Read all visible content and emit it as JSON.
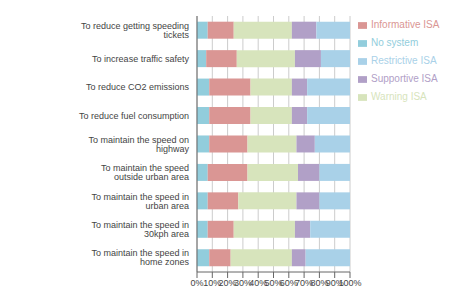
{
  "chart_data": {
    "type": "bar",
    "orientation": "horizontal",
    "stacked": true,
    "categories": [
      "To reduce getting speeding tickets",
      "To increase traffic safety",
      "To reduce CO2 emissions",
      "To reduce fuel consumption",
      "To maintain the speed on highway",
      "To maintain the speed outside urban area",
      "To maintain the speed in urban area",
      "To maintain the speed in 30kph area",
      "To maintain the speed in home zones"
    ],
    "series": [
      {
        "name": "No system",
        "color": "#92CDDC",
        "values": [
          7,
          6,
          8,
          8,
          8,
          7,
          7,
          7,
          8
        ]
      },
      {
        "name": "Informative ISA",
        "color": "#DA9694",
        "values": [
          17,
          20,
          27,
          27,
          25,
          26,
          20,
          17,
          14
        ]
      },
      {
        "name": "Warning ISA",
        "color": "#D7E4BC",
        "values": [
          38,
          38,
          27,
          27,
          32,
          33,
          38,
          40,
          40
        ]
      },
      {
        "name": "Supportive ISA",
        "color": "#B1A0C7",
        "values": [
          16,
          17,
          10,
          10,
          12,
          14,
          15,
          10,
          9
        ]
      },
      {
        "name": "Restrictive ISA",
        "color": "#A9D1E8",
        "values": [
          22,
          19,
          28,
          28,
          23,
          20,
          20,
          26,
          29
        ]
      }
    ],
    "xlim": [
      0,
      100
    ],
    "xticks": [
      {
        "value": 0,
        "label": "0%"
      },
      {
        "value": 10,
        "label": "10%"
      },
      {
        "value": 20,
        "label": "20%"
      },
      {
        "value": 30,
        "label": "30%"
      },
      {
        "value": 40,
        "label": "40%"
      },
      {
        "value": 50,
        "label": "50%"
      },
      {
        "value": 60,
        "label": "60%"
      },
      {
        "value": 70,
        "label": "70%"
      },
      {
        "value": 80,
        "label": "80%"
      },
      {
        "value": 90,
        "label": "90%"
      },
      {
        "value": 100,
        "label": "100%"
      }
    ],
    "grid": true,
    "legend": "right"
  }
}
